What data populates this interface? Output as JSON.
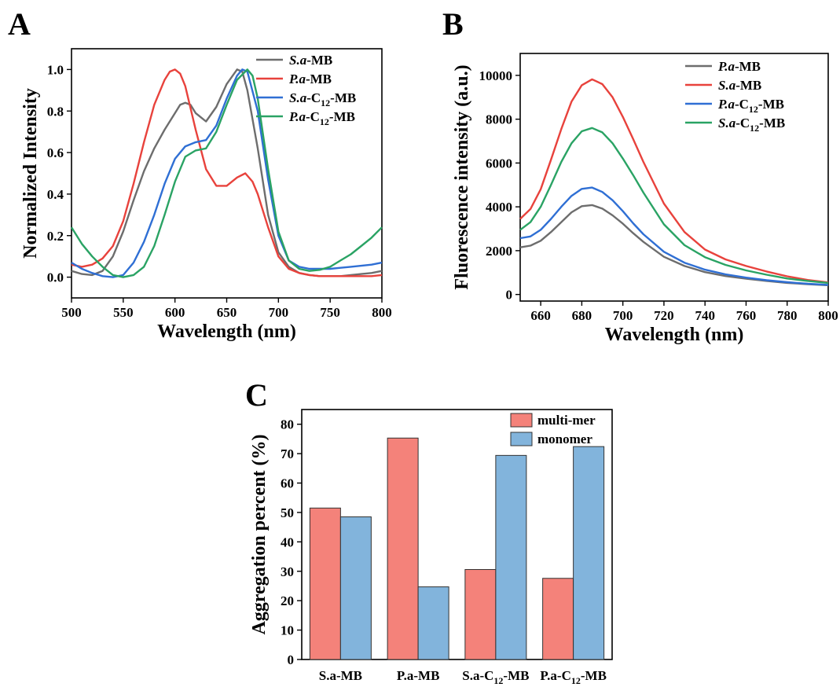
{
  "figure": {
    "panels": [
      "A",
      "B",
      "C"
    ]
  },
  "chart_data": [
    {
      "panel": "A",
      "type": "line",
      "xlabel": "Wavelength (nm)",
      "ylabel": "Normalized Intensity",
      "xlim": [
        500,
        800
      ],
      "ylim": [
        -0.1,
        1.1
      ],
      "xticks": [
        500,
        550,
        600,
        650,
        700,
        750,
        800
      ],
      "yticks": [
        0.0,
        0.2,
        0.4,
        0.6,
        0.8,
        1.0
      ],
      "yticks_text": [
        "0.0",
        "0.2",
        "0.4",
        "0.6",
        "0.8",
        "1.0"
      ],
      "grid": false,
      "legend_position": "top-right",
      "series": [
        {
          "name": "S.a-MB",
          "legend": [
            {
              "t": "S.a",
              "i": true
            },
            {
              "t": "-MB"
            }
          ],
          "color": "#6d6d6d",
          "x": [
            500,
            510,
            520,
            530,
            540,
            550,
            560,
            570,
            580,
            590,
            600,
            605,
            610,
            615,
            620,
            630,
            640,
            650,
            660,
            665,
            670,
            680,
            690,
            700,
            710,
            720,
            730,
            740,
            750,
            760,
            770,
            780,
            790,
            800
          ],
          "y": [
            0.03,
            0.015,
            0.01,
            0.03,
            0.1,
            0.22,
            0.37,
            0.51,
            0.62,
            0.71,
            0.79,
            0.83,
            0.84,
            0.83,
            0.79,
            0.75,
            0.82,
            0.93,
            1.0,
            0.99,
            0.9,
            0.62,
            0.3,
            0.12,
            0.05,
            0.02,
            0.01,
            0.005,
            0.005,
            0.005,
            0.01,
            0.015,
            0.02,
            0.03
          ]
        },
        {
          "name": "P.a-MB",
          "legend": [
            {
              "t": "P.a",
              "i": true
            },
            {
              "t": "-MB"
            }
          ],
          "color": "#e8423c",
          "x": [
            500,
            510,
            520,
            530,
            540,
            550,
            560,
            570,
            580,
            590,
            595,
            600,
            605,
            610,
            620,
            630,
            640,
            650,
            660,
            668,
            675,
            680,
            690,
            700,
            710,
            720,
            730,
            740,
            750,
            760,
            770,
            780,
            790,
            800
          ],
          "y": [
            0.06,
            0.05,
            0.06,
            0.09,
            0.15,
            0.27,
            0.45,
            0.65,
            0.83,
            0.95,
            0.99,
            1.0,
            0.98,
            0.92,
            0.71,
            0.52,
            0.44,
            0.44,
            0.48,
            0.5,
            0.46,
            0.4,
            0.24,
            0.1,
            0.04,
            0.02,
            0.01,
            0.005,
            0.005,
            0.005,
            0.005,
            0.005,
            0.005,
            0.01
          ]
        },
        {
          "name": "S.a-C12-MB",
          "legend": [
            {
              "t": "S.a",
              "i": true
            },
            {
              "t": "-C"
            },
            {
              "t": "12",
              "sub": true
            },
            {
              "t": "-MB"
            }
          ],
          "color": "#2f6fd4",
          "x": [
            500,
            510,
            520,
            530,
            540,
            550,
            560,
            570,
            580,
            590,
            600,
            610,
            620,
            630,
            640,
            650,
            660,
            665,
            670,
            680,
            690,
            700,
            710,
            720,
            730,
            740,
            750,
            760,
            770,
            780,
            790,
            800
          ],
          "y": [
            0.07,
            0.04,
            0.02,
            0.005,
            0.0,
            0.01,
            0.07,
            0.17,
            0.3,
            0.45,
            0.57,
            0.63,
            0.65,
            0.66,
            0.73,
            0.86,
            0.97,
            1.0,
            0.99,
            0.8,
            0.47,
            0.2,
            0.08,
            0.05,
            0.04,
            0.04,
            0.04,
            0.045,
            0.05,
            0.055,
            0.06,
            0.07
          ]
        },
        {
          "name": "P.a-C12-MB",
          "legend": [
            {
              "t": "P.a",
              "i": true
            },
            {
              "t": "-C"
            },
            {
              "t": "12",
              "sub": true
            },
            {
              "t": "-MB"
            }
          ],
          "color": "#2aa364",
          "x": [
            500,
            510,
            520,
            530,
            540,
            550,
            560,
            570,
            580,
            590,
            600,
            610,
            620,
            630,
            640,
            650,
            660,
            670,
            675,
            680,
            690,
            700,
            710,
            720,
            730,
            740,
            750,
            760,
            770,
            780,
            790,
            800
          ],
          "y": [
            0.24,
            0.16,
            0.1,
            0.05,
            0.01,
            0.0,
            0.01,
            0.05,
            0.15,
            0.3,
            0.46,
            0.58,
            0.61,
            0.62,
            0.7,
            0.83,
            0.95,
            1.0,
            0.97,
            0.86,
            0.52,
            0.22,
            0.08,
            0.04,
            0.03,
            0.035,
            0.05,
            0.08,
            0.11,
            0.15,
            0.19,
            0.24
          ]
        }
      ]
    },
    {
      "panel": "B",
      "type": "line",
      "xlabel": "Wavelength (nm)",
      "ylabel": "Fluorescence intensity (a.u.)",
      "xlim": [
        650,
        800
      ],
      "ylim": [
        -300,
        11000
      ],
      "xticks": [
        660,
        680,
        700,
        720,
        740,
        760,
        780,
        800
      ],
      "yticks": [
        0,
        2000,
        4000,
        6000,
        8000,
        10000
      ],
      "grid": false,
      "legend_position": "top-right",
      "series": [
        {
          "name": "P.a-MB",
          "legend": [
            {
              "t": "P.a",
              "i": true
            },
            {
              "t": "-MB"
            }
          ],
          "color": "#6d6d6d",
          "x": [
            650,
            655,
            660,
            665,
            670,
            675,
            680,
            685,
            690,
            695,
            700,
            705,
            710,
            720,
            730,
            740,
            750,
            760,
            770,
            780,
            790,
            800
          ],
          "y": [
            2150,
            2230,
            2450,
            2850,
            3300,
            3750,
            4030,
            4080,
            3920,
            3610,
            3230,
            2800,
            2400,
            1720,
            1300,
            1020,
            840,
            720,
            620,
            530,
            470,
            420
          ]
        },
        {
          "name": "S.a-MB",
          "legend": [
            {
              "t": "S.a",
              "i": true
            },
            {
              "t": "-MB"
            }
          ],
          "color": "#e8423c",
          "x": [
            650,
            655,
            660,
            665,
            670,
            675,
            680,
            685,
            690,
            695,
            700,
            705,
            710,
            720,
            730,
            740,
            750,
            760,
            770,
            780,
            790,
            800
          ],
          "y": [
            3450,
            3900,
            4800,
            6150,
            7550,
            8800,
            9550,
            9820,
            9600,
            9000,
            8100,
            7100,
            6050,
            4150,
            2850,
            2050,
            1600,
            1300,
            1050,
            830,
            660,
            550
          ]
        },
        {
          "name": "P.a-C12-MB",
          "legend": [
            {
              "t": "P.a",
              "i": true
            },
            {
              "t": "-C"
            },
            {
              "t": "12",
              "sub": true
            },
            {
              "t": "-MB"
            }
          ],
          "color": "#2f6fd4",
          "x": [
            650,
            655,
            660,
            665,
            670,
            675,
            680,
            685,
            690,
            695,
            700,
            705,
            710,
            720,
            730,
            740,
            750,
            760,
            770,
            780,
            790,
            800
          ],
          "y": [
            2570,
            2650,
            2950,
            3450,
            4000,
            4500,
            4820,
            4880,
            4680,
            4300,
            3800,
            3250,
            2750,
            1950,
            1450,
            1130,
            920,
            770,
            650,
            560,
            490,
            440
          ]
        },
        {
          "name": "S.a-C12-MB",
          "legend": [
            {
              "t": "S.a",
              "i": true
            },
            {
              "t": "-C"
            },
            {
              "t": "12",
              "sub": true
            },
            {
              "t": "-MB"
            }
          ],
          "color": "#2aa364",
          "x": [
            650,
            655,
            660,
            665,
            670,
            675,
            680,
            685,
            690,
            695,
            700,
            705,
            710,
            720,
            730,
            740,
            750,
            760,
            770,
            780,
            790,
            800
          ],
          "y": [
            2950,
            3300,
            4000,
            5000,
            6050,
            6900,
            7450,
            7600,
            7400,
            6900,
            6200,
            5450,
            4650,
            3200,
            2250,
            1700,
            1350,
            1100,
            900,
            730,
            620,
            530
          ]
        }
      ]
    },
    {
      "panel": "C",
      "type": "bar",
      "xlabel": "",
      "ylabel": "Aggregation percent (%)",
      "ylim": [
        0,
        85
      ],
      "yticks": [
        0,
        10,
        20,
        30,
        40,
        50,
        60,
        70,
        80
      ],
      "grid": false,
      "legend_position": "top-right",
      "categories": [
        "S.a-MB",
        "P.a-MB",
        "S.a-C12-MB",
        "P.a-C12-MB"
      ],
      "category_labels": [
        [
          {
            "t": "S.a-MB"
          }
        ],
        [
          {
            "t": "P.a-MB"
          }
        ],
        [
          {
            "t": "S.a-C"
          },
          {
            "t": "12",
            "sub": true
          },
          {
            "t": "-MB"
          }
        ],
        [
          {
            "t": "P.a-C"
          },
          {
            "t": "12",
            "sub": true
          },
          {
            "t": "-MB"
          }
        ]
      ],
      "series": [
        {
          "name": "multi-mer",
          "color": "#f4827a",
          "values": [
            51.5,
            75.3,
            30.6,
            27.6
          ]
        },
        {
          "name": "monomer",
          "color": "#82b4dc",
          "values": [
            48.5,
            24.7,
            69.4,
            72.4
          ]
        }
      ]
    }
  ]
}
